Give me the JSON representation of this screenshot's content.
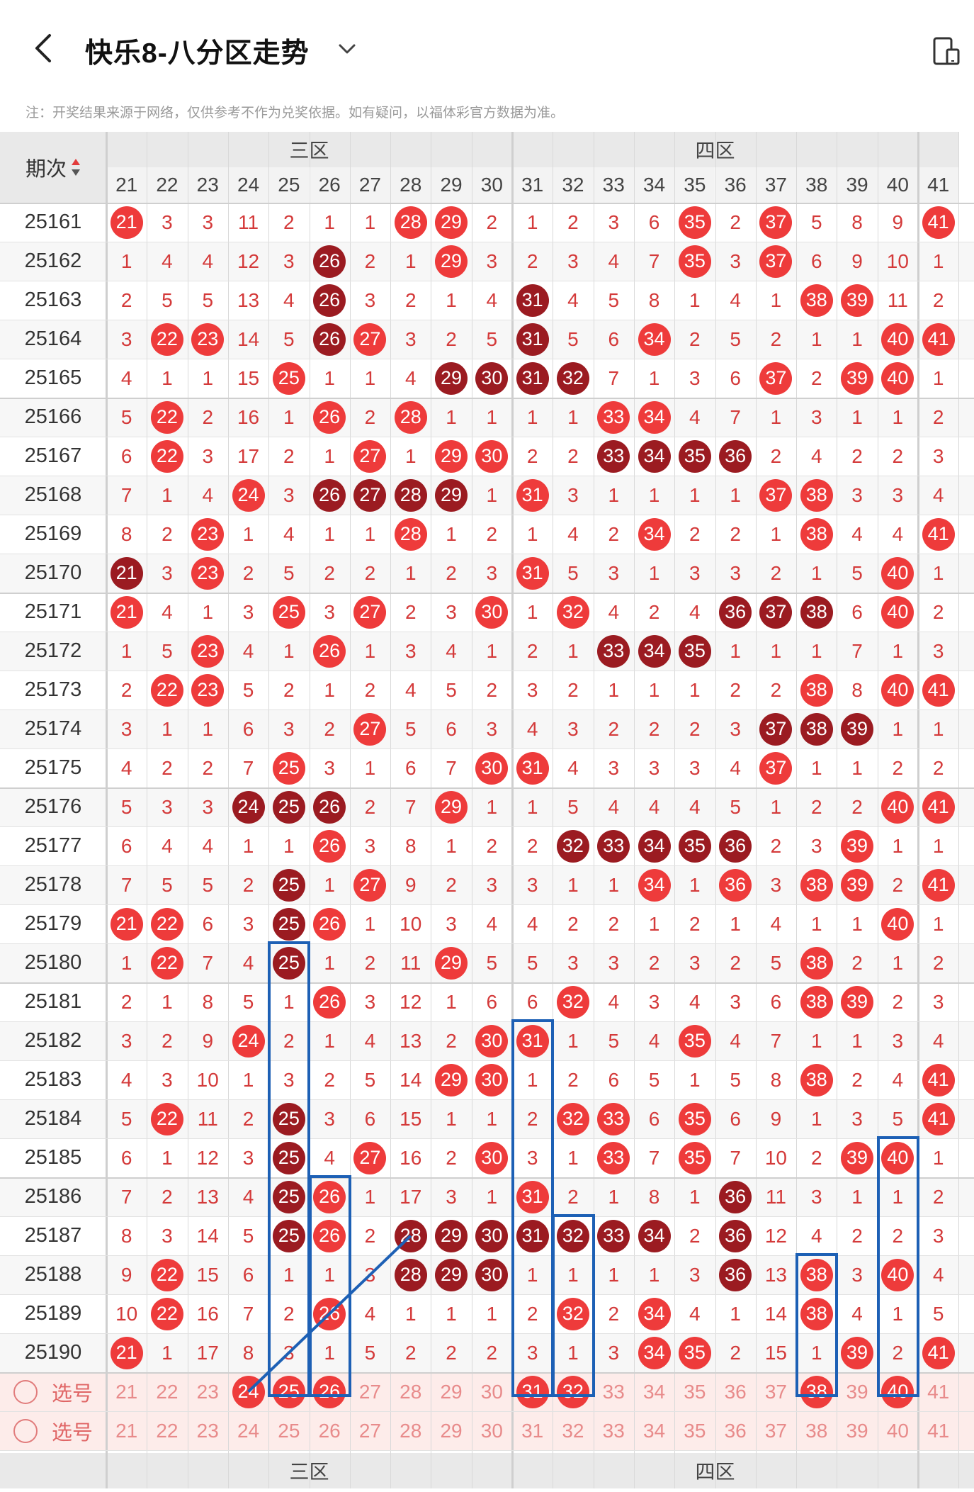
{
  "header": {
    "title": "快乐8-八分区走势",
    "notice": "注：开奖结果来源于网络，仅供参考不作为兑奖依据。如有疑问，以福体彩官方数据为准。",
    "icons": {
      "back": "chevron-left-icon",
      "dropdown": "chevron-down-icon",
      "device": "device-icon"
    }
  },
  "table": {
    "period_header": "期次",
    "zones": [
      {
        "label": "三区",
        "columns": [
          "21",
          "22",
          "23",
          "24",
          "25",
          "26",
          "27",
          "28",
          "29",
          "30"
        ]
      },
      {
        "label": "四区",
        "columns": [
          "31",
          "32",
          "33",
          "34",
          "35",
          "36",
          "37",
          "38",
          "39",
          "40"
        ]
      },
      {
        "label": "",
        "columns": [
          "41"
        ]
      }
    ],
    "rows": [
      {
        "period": "25161",
        "cells": [
          "21",
          "3",
          "3",
          "11",
          "2",
          "1",
          "1",
          "28",
          "29",
          "2",
          "1",
          "2",
          "3",
          "6",
          "35",
          "2",
          "37",
          "5",
          "8",
          "9",
          "41"
        ]
      },
      {
        "period": "25162",
        "cells": [
          "1",
          "4",
          "4",
          "12",
          "3",
          "26",
          "2",
          "1",
          "29",
          "3",
          "2",
          "3",
          "4",
          "7",
          "35",
          "3",
          "37",
          "6",
          "9",
          "10",
          "1"
        ]
      },
      {
        "period": "25163",
        "cells": [
          "2",
          "5",
          "5",
          "13",
          "4",
          "26",
          "3",
          "2",
          "1",
          "4",
          "31",
          "4",
          "5",
          "8",
          "1",
          "4",
          "1",
          "38",
          "39",
          "11",
          "2"
        ]
      },
      {
        "period": "25164",
        "cells": [
          "3",
          "22",
          "23",
          "14",
          "5",
          "26",
          "27",
          "3",
          "2",
          "5",
          "31",
          "5",
          "6",
          "34",
          "2",
          "5",
          "2",
          "1",
          "1",
          "40",
          "41"
        ]
      },
      {
        "period": "25165",
        "cells": [
          "4",
          "1",
          "1",
          "15",
          "25",
          "1",
          "1",
          "4",
          "29",
          "30",
          "31",
          "32",
          "7",
          "1",
          "3",
          "6",
          "37",
          "2",
          "39",
          "40",
          "1"
        ]
      },
      {
        "period": "25166",
        "cells": [
          "5",
          "22",
          "2",
          "16",
          "1",
          "26",
          "2",
          "28",
          "1",
          "1",
          "1",
          "1",
          "33",
          "34",
          "4",
          "7",
          "1",
          "3",
          "1",
          "1",
          "2"
        ]
      },
      {
        "period": "25167",
        "cells": [
          "6",
          "22",
          "3",
          "17",
          "2",
          "1",
          "27",
          "1",
          "29",
          "30",
          "2",
          "2",
          "33",
          "34",
          "35",
          "36",
          "2",
          "4",
          "2",
          "2",
          "3"
        ]
      },
      {
        "period": "25168",
        "cells": [
          "7",
          "1",
          "4",
          "24",
          "3",
          "26",
          "27",
          "28",
          "29",
          "1",
          "31",
          "3",
          "1",
          "1",
          "1",
          "1",
          "37",
          "38",
          "3",
          "3",
          "4"
        ]
      },
      {
        "period": "25169",
        "cells": [
          "8",
          "2",
          "23",
          "1",
          "4",
          "1",
          "1",
          "28",
          "1",
          "2",
          "1",
          "4",
          "2",
          "34",
          "2",
          "2",
          "1",
          "38",
          "4",
          "4",
          "41"
        ]
      },
      {
        "period": "25170",
        "cells": [
          "21",
          "3",
          "23",
          "2",
          "5",
          "2",
          "2",
          "1",
          "2",
          "3",
          "31",
          "5",
          "3",
          "1",
          "3",
          "3",
          "2",
          "1",
          "5",
          "40",
          "1"
        ]
      },
      {
        "period": "25171",
        "cells": [
          "21",
          "4",
          "1",
          "3",
          "25",
          "3",
          "27",
          "2",
          "3",
          "30",
          "1",
          "32",
          "4",
          "2",
          "4",
          "36",
          "37",
          "38",
          "6",
          "40",
          "2"
        ]
      },
      {
        "period": "25172",
        "cells": [
          "1",
          "5",
          "23",
          "4",
          "1",
          "26",
          "1",
          "3",
          "4",
          "1",
          "2",
          "1",
          "33",
          "34",
          "35",
          "1",
          "1",
          "1",
          "7",
          "1",
          "3"
        ]
      },
      {
        "period": "25173",
        "cells": [
          "2",
          "22",
          "23",
          "5",
          "2",
          "1",
          "2",
          "4",
          "5",
          "2",
          "3",
          "2",
          "1",
          "1",
          "1",
          "2",
          "2",
          "38",
          "8",
          "40",
          "41"
        ]
      },
      {
        "period": "25174",
        "cells": [
          "3",
          "1",
          "1",
          "6",
          "3",
          "2",
          "27",
          "5",
          "6",
          "3",
          "4",
          "3",
          "2",
          "2",
          "2",
          "3",
          "37",
          "38",
          "39",
          "1",
          "1"
        ]
      },
      {
        "period": "25175",
        "cells": [
          "4",
          "2",
          "2",
          "7",
          "25",
          "3",
          "1",
          "6",
          "7",
          "30",
          "31",
          "4",
          "3",
          "3",
          "3",
          "4",
          "37",
          "1",
          "1",
          "2",
          "2"
        ]
      },
      {
        "period": "25176",
        "cells": [
          "5",
          "3",
          "3",
          "24",
          "25",
          "26",
          "2",
          "7",
          "29",
          "1",
          "1",
          "5",
          "4",
          "4",
          "4",
          "5",
          "1",
          "2",
          "2",
          "40",
          "41"
        ]
      },
      {
        "period": "25177",
        "cells": [
          "6",
          "4",
          "4",
          "1",
          "1",
          "26",
          "3",
          "8",
          "1",
          "2",
          "2",
          "32",
          "33",
          "34",
          "35",
          "36",
          "2",
          "3",
          "39",
          "1",
          "1"
        ]
      },
      {
        "period": "25178",
        "cells": [
          "7",
          "5",
          "5",
          "2",
          "25",
          "1",
          "27",
          "9",
          "2",
          "3",
          "3",
          "1",
          "1",
          "34",
          "1",
          "36",
          "3",
          "38",
          "39",
          "2",
          "41"
        ]
      },
      {
        "period": "25179",
        "cells": [
          "21",
          "22",
          "6",
          "3",
          "25",
          "26",
          "1",
          "10",
          "3",
          "4",
          "4",
          "2",
          "2",
          "1",
          "2",
          "1",
          "4",
          "1",
          "1",
          "40",
          "1"
        ]
      },
      {
        "period": "25180",
        "cells": [
          "1",
          "22",
          "7",
          "4",
          "25",
          "1",
          "2",
          "11",
          "29",
          "5",
          "5",
          "3",
          "3",
          "2",
          "3",
          "2",
          "5",
          "38",
          "2",
          "1",
          "2"
        ]
      },
      {
        "period": "25181",
        "cells": [
          "2",
          "1",
          "8",
          "5",
          "1",
          "26",
          "3",
          "12",
          "1",
          "6",
          "6",
          "32",
          "4",
          "3",
          "4",
          "3",
          "6",
          "38",
          "39",
          "2",
          "3"
        ]
      },
      {
        "period": "25182",
        "cells": [
          "3",
          "2",
          "9",
          "24",
          "2",
          "1",
          "4",
          "13",
          "2",
          "30",
          "31",
          "1",
          "5",
          "4",
          "35",
          "4",
          "7",
          "1",
          "1",
          "3",
          "4"
        ]
      },
      {
        "period": "25183",
        "cells": [
          "4",
          "3",
          "10",
          "1",
          "3",
          "2",
          "5",
          "14",
          "29",
          "30",
          "1",
          "2",
          "6",
          "5",
          "1",
          "5",
          "8",
          "38",
          "2",
          "4",
          "41"
        ]
      },
      {
        "period": "25184",
        "cells": [
          "5",
          "22",
          "11",
          "2",
          "25",
          "3",
          "6",
          "15",
          "1",
          "1",
          "2",
          "32",
          "33",
          "6",
          "35",
          "6",
          "9",
          "1",
          "3",
          "5",
          "41"
        ]
      },
      {
        "period": "25185",
        "cells": [
          "6",
          "1",
          "12",
          "3",
          "25",
          "4",
          "27",
          "16",
          "2",
          "30",
          "3",
          "1",
          "33",
          "7",
          "35",
          "7",
          "10",
          "2",
          "39",
          "40",
          "1"
        ]
      },
      {
        "period": "25186",
        "cells": [
          "7",
          "2",
          "13",
          "4",
          "25",
          "26",
          "1",
          "17",
          "3",
          "1",
          "31",
          "2",
          "1",
          "8",
          "1",
          "36",
          "11",
          "3",
          "1",
          "1",
          "2"
        ]
      },
      {
        "period": "25187",
        "cells": [
          "8",
          "3",
          "14",
          "5",
          "25",
          "26",
          "2",
          "28",
          "29",
          "30",
          "31",
          "32",
          "33",
          "34",
          "2",
          "36",
          "12",
          "4",
          "2",
          "2",
          "3"
        ]
      },
      {
        "period": "25188",
        "cells": [
          "9",
          "22",
          "15",
          "6",
          "1",
          "1",
          "3",
          "28",
          "29",
          "30",
          "1",
          "1",
          "1",
          "1",
          "3",
          "36",
          "13",
          "38",
          "3",
          "40",
          "4"
        ]
      },
      {
        "period": "25189",
        "cells": [
          "10",
          "22",
          "16",
          "7",
          "2",
          "26",
          "4",
          "1",
          "1",
          "1",
          "2",
          "32",
          "2",
          "34",
          "4",
          "1",
          "14",
          "38",
          "4",
          "1",
          "5"
        ]
      },
      {
        "period": "25190",
        "cells": [
          "21",
          "1",
          "17",
          "8",
          "3",
          "1",
          "5",
          "2",
          "2",
          "2",
          "3",
          "1",
          "3",
          "34",
          "35",
          "2",
          "15",
          "1",
          "39",
          "2",
          "41"
        ]
      }
    ],
    "dark_balls": [
      "25162:26",
      "25163:26",
      "25163:31",
      "25164:26",
      "25164:31",
      "25165:29",
      "25165:30",
      "25165:31",
      "25165:32",
      "25167:33",
      "25167:34",
      "25167:35",
      "25167:36",
      "25168:26",
      "25168:27",
      "25168:28",
      "25168:29",
      "25170:21",
      "25171:36",
      "25171:37",
      "25171:38",
      "25172:33",
      "25172:34",
      "25172:35",
      "25174:37",
      "25174:38",
      "25174:39",
      "25176:24",
      "25176:25",
      "25176:26",
      "25177:32",
      "25177:33",
      "25177:34",
      "25177:35",
      "25177:36",
      "25178:25",
      "25179:25",
      "25180:25",
      "25184:25",
      "25185:25",
      "25186:25",
      "25186:36",
      "25187:25",
      "25187:28",
      "25187:29",
      "25187:30",
      "25187:31",
      "25187:32",
      "25187:33",
      "25187:34",
      "25187:36",
      "25188:28",
      "25188:29",
      "25188:30",
      "25188:36"
    ],
    "pick_rows": [
      {
        "label": "选号",
        "selected": [
          "24",
          "25",
          "26",
          "31",
          "32",
          "38",
          "40"
        ]
      },
      {
        "label": "选号",
        "selected": []
      }
    ],
    "footer_zones": [
      "三区",
      "四区"
    ]
  },
  "colors": {
    "accent": "#ee3b3b",
    "dark_ball": "#9b1b21",
    "annotation": "#1d60b5",
    "pick_bg": "#fdecea"
  }
}
